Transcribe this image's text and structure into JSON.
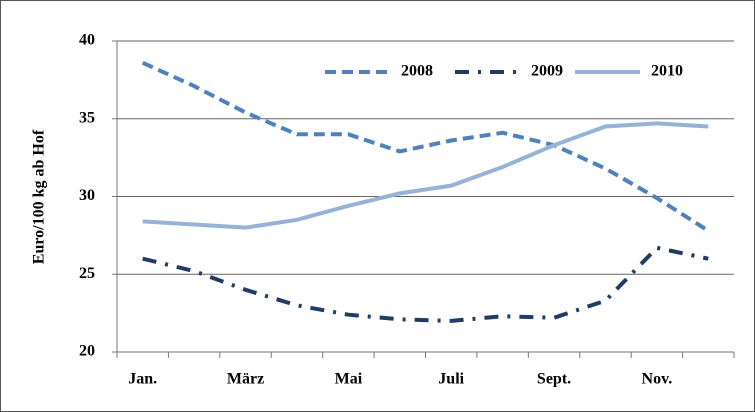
{
  "chart_data": {
    "type": "line",
    "y_label": "Euro/100 kg ab Hof",
    "categories": [
      "Jan.",
      null,
      "März",
      null,
      "Mai",
      null,
      "Juli",
      null,
      "Sept.",
      null,
      "Nov.",
      null
    ],
    "series": [
      {
        "name": "2008",
        "color": "#4f81bd",
        "style": "dashed",
        "values": [
          38.6,
          37.1,
          35.4,
          34.0,
          34.0,
          32.9,
          33.6,
          34.1,
          33.3,
          31.8,
          29.9,
          27.8
        ]
      },
      {
        "name": "2009",
        "color": "#1f3b66",
        "style": "dashdot",
        "values": [
          26.0,
          25.2,
          24.0,
          23.0,
          22.4,
          22.1,
          22.0,
          22.3,
          22.2,
          23.3,
          26.7,
          26.0
        ]
      },
      {
        "name": "2010",
        "color": "#95b3d7",
        "style": "solid",
        "values": [
          28.4,
          28.2,
          28.0,
          28.5,
          29.4,
          30.2,
          30.7,
          31.9,
          33.3,
          34.5,
          34.7,
          34.5
        ]
      }
    ],
    "ylim": [
      20,
      40
    ],
    "yticks": [
      20,
      25,
      30,
      35,
      40
    ],
    "grid": true,
    "legend": "top-right"
  }
}
